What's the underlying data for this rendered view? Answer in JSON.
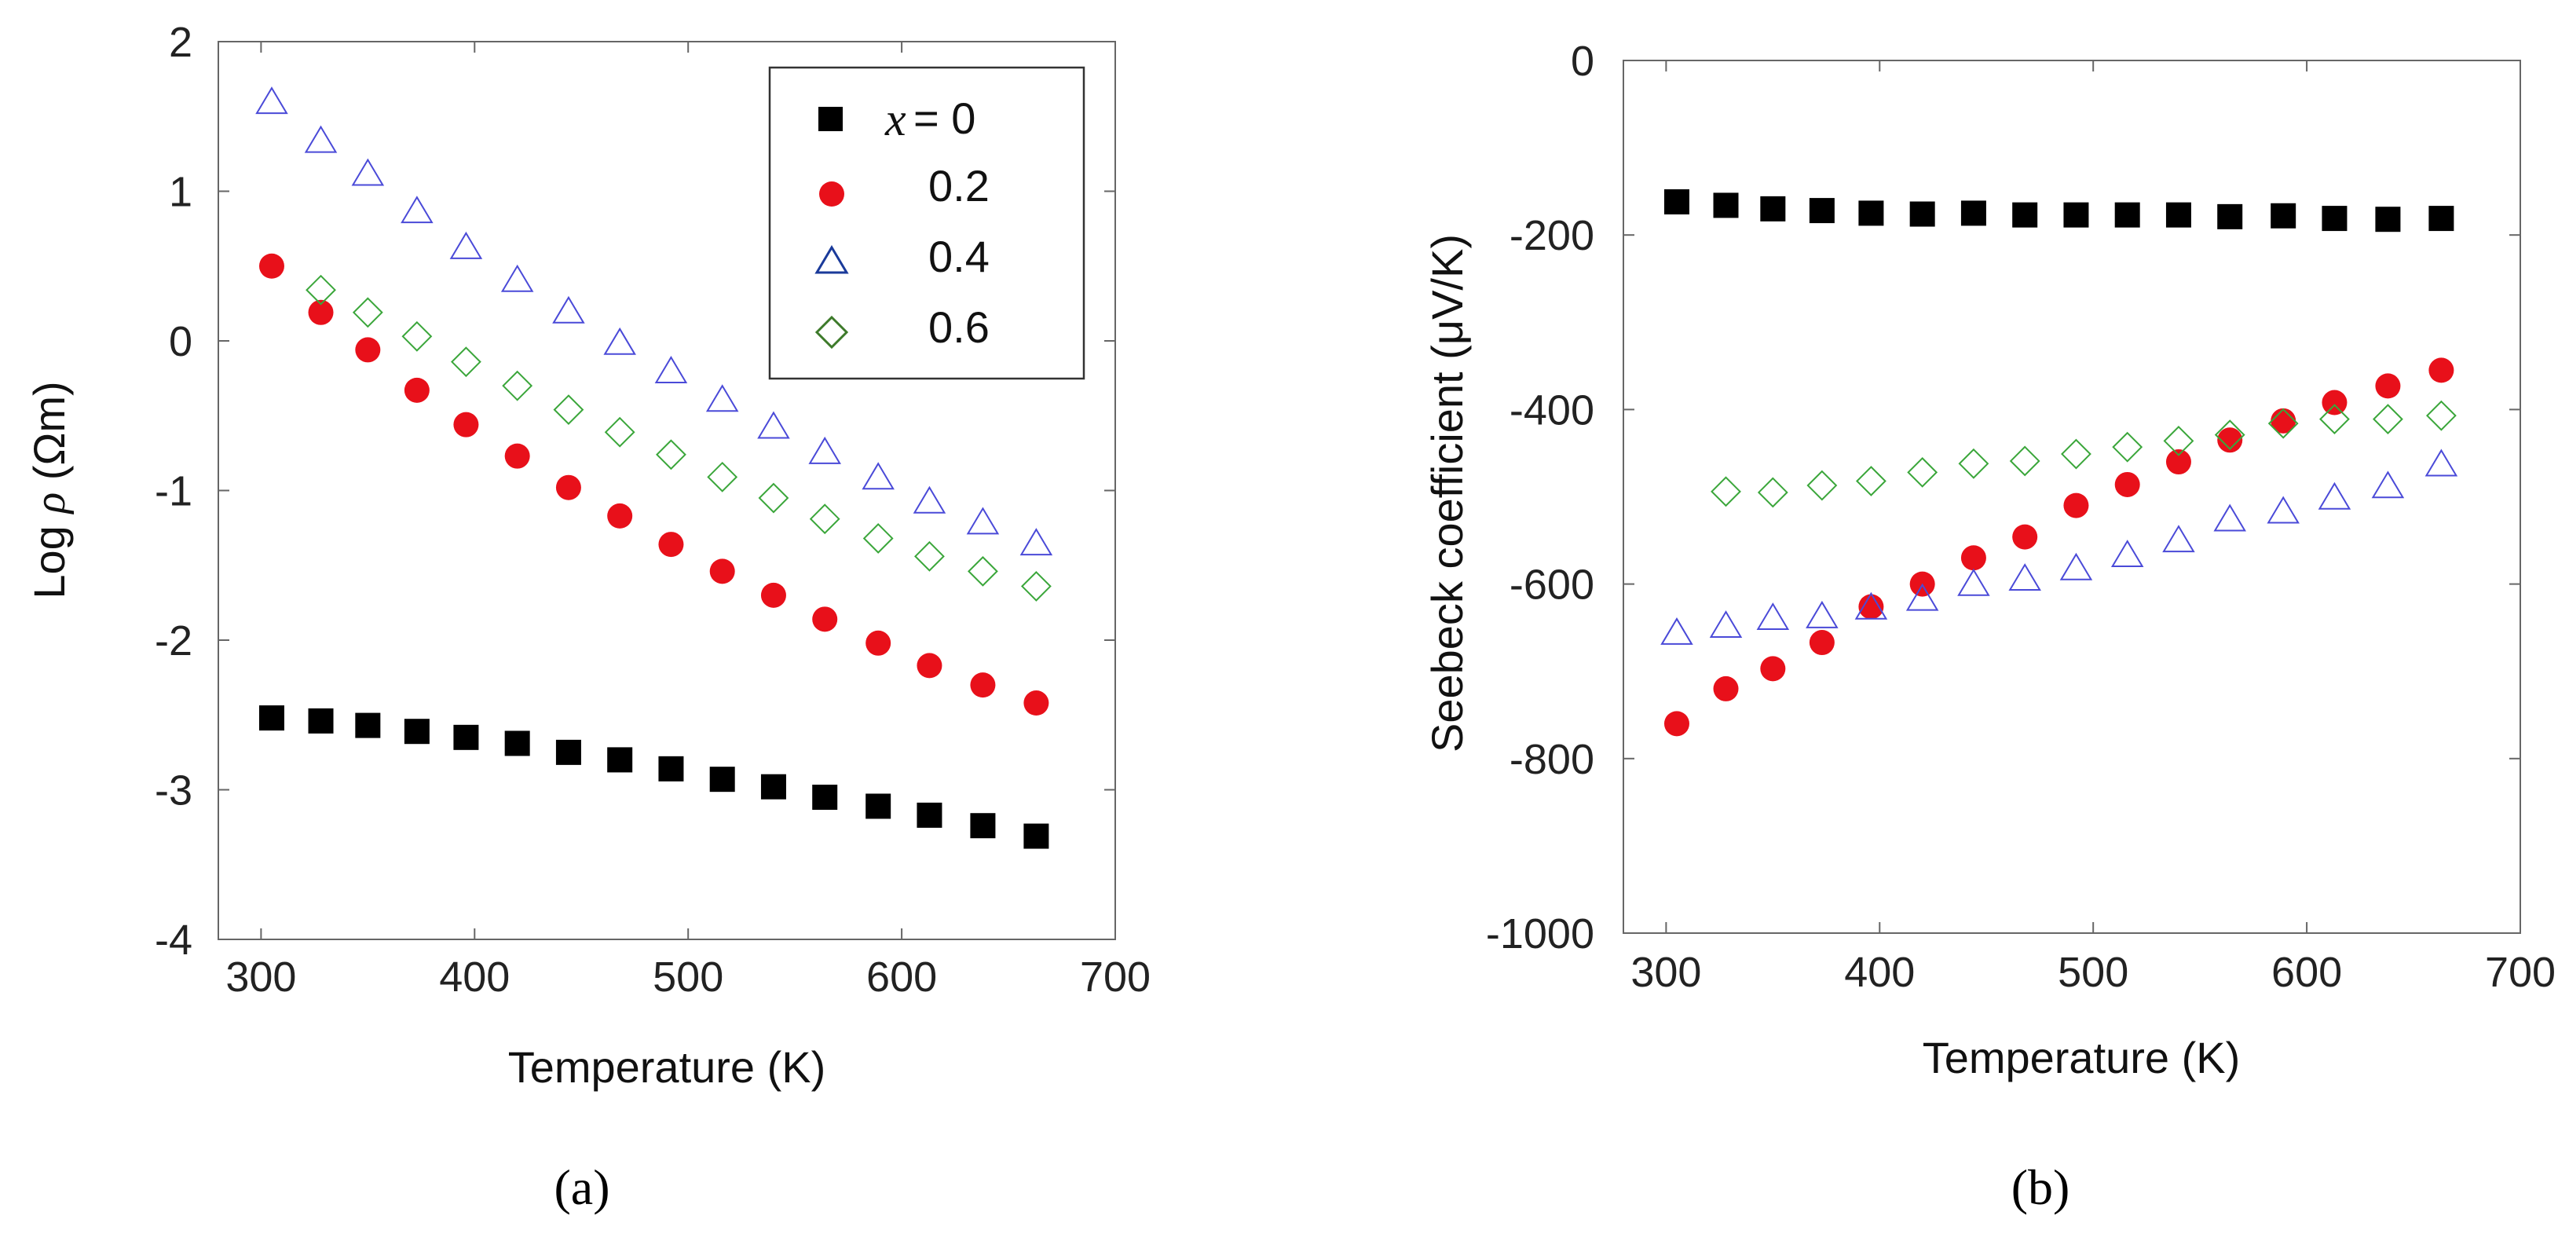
{
  "chart_data": [
    {
      "type": "scatter",
      "panel_label": "(a)",
      "xlabel": "Temperature (K)",
      "ylabel_prefix": "Log ",
      "ylabel_symbol": "ρ",
      "ylabel_suffix": " (Ωm)",
      "xlim": [
        280,
        700
      ],
      "ylim": [
        -4,
        2
      ],
      "xticks": [
        300,
        400,
        500,
        600,
        700
      ],
      "yticks": [
        -4,
        -3,
        -2,
        -1,
        0,
        1,
        2
      ],
      "legend": {
        "position": "top-right",
        "var_label": "x",
        "entries": [
          "= 0",
          "0.2",
          "0.4",
          "0.6"
        ]
      },
      "series": [
        {
          "name": "x = 0",
          "marker": "square",
          "color": "#000000",
          "x": [
            305,
            328,
            350,
            373,
            396,
            420,
            444,
            468,
            492,
            516,
            540,
            564,
            589,
            613,
            638,
            663
          ],
          "y": [
            -2.52,
            -2.54,
            -2.57,
            -2.61,
            -2.65,
            -2.69,
            -2.75,
            -2.8,
            -2.86,
            -2.93,
            -2.98,
            -3.05,
            -3.11,
            -3.17,
            -3.24,
            -3.31
          ]
        },
        {
          "name": "0.2",
          "marker": "circle",
          "color": "#e8101a",
          "x": [
            305,
            328,
            350,
            373,
            396,
            420,
            444,
            468,
            492,
            516,
            540,
            564,
            589,
            613,
            638,
            663
          ],
          "y": [
            0.5,
            0.19,
            -0.06,
            -0.33,
            -0.56,
            -0.77,
            -0.98,
            -1.17,
            -1.36,
            -1.54,
            -1.7,
            -1.86,
            -2.02,
            -2.17,
            -2.3,
            -2.42
          ]
        },
        {
          "name": "0.4",
          "marker": "triangle",
          "color": "#4a4ad8",
          "x": [
            305,
            328,
            350,
            373,
            396,
            420,
            444,
            468,
            492,
            516,
            540,
            564,
            589,
            613,
            638,
            663
          ],
          "y": [
            1.59,
            1.33,
            1.11,
            0.86,
            0.62,
            0.4,
            0.19,
            -0.02,
            -0.21,
            -0.4,
            -0.58,
            -0.75,
            -0.92,
            -1.08,
            -1.22,
            -1.36
          ]
        },
        {
          "name": "0.6",
          "marker": "diamond",
          "color": "#3aa63a",
          "x": [
            328,
            350,
            373,
            396,
            420,
            444,
            468,
            492,
            516,
            540,
            564,
            589,
            613,
            638,
            663
          ],
          "y": [
            0.34,
            0.19,
            0.03,
            -0.14,
            -0.3,
            -0.46,
            -0.61,
            -0.76,
            -0.91,
            -1.05,
            -1.19,
            -1.32,
            -1.44,
            -1.54,
            -1.64
          ]
        }
      ]
    },
    {
      "type": "scatter",
      "panel_label": "(b)",
      "xlabel": "Temperature (K)",
      "ylabel": "Seebeck coefficient (μV/K)",
      "xlim": [
        280,
        700
      ],
      "ylim": [
        -1000,
        0
      ],
      "xticks": [
        300,
        400,
        500,
        600,
        700
      ],
      "yticks": [
        -1000,
        -800,
        -600,
        -400,
        -200,
        0
      ],
      "series": [
        {
          "name": "x = 0",
          "marker": "square",
          "color": "#000000",
          "x": [
            305,
            328,
            350,
            373,
            396,
            420,
            444,
            468,
            492,
            516,
            540,
            564,
            589,
            613,
            638,
            663
          ],
          "y": [
            -162,
            -166,
            -170,
            -172,
            -175,
            -176,
            -175,
            -177,
            -177,
            -177,
            -177,
            -179,
            -178,
            -181,
            -182,
            -181
          ]
        },
        {
          "name": "0.2",
          "marker": "circle",
          "color": "#e8101a",
          "x": [
            305,
            328,
            350,
            373,
            396,
            420,
            444,
            468,
            492,
            516,
            540,
            564,
            589,
            613,
            638,
            663
          ],
          "y": [
            -760,
            -720,
            -697,
            -667,
            -626,
            -600,
            -570,
            -546,
            -510,
            -486,
            -460,
            -435,
            -413,
            -392,
            -373,
            -355
          ]
        },
        {
          "name": "0.4",
          "marker": "triangle",
          "color": "#4a4ad8",
          "x": [
            305,
            328,
            350,
            373,
            396,
            420,
            444,
            468,
            492,
            516,
            540,
            564,
            589,
            613,
            638,
            663
          ],
          "y": [
            -657,
            -649,
            -640,
            -638,
            -628,
            -618,
            -601,
            -595,
            -583,
            -568,
            -551,
            -527,
            -518,
            -502,
            -489,
            -464
          ]
        },
        {
          "name": "0.6",
          "marker": "diamond",
          "color": "#3aa63a",
          "x": [
            328,
            350,
            373,
            396,
            420,
            444,
            468,
            492,
            516,
            540,
            564,
            589,
            613,
            638,
            663
          ],
          "y": [
            -494,
            -495,
            -487,
            -482,
            -472,
            -462,
            -459,
            -451,
            -443,
            -436,
            -429,
            -416,
            -411,
            -411,
            -407
          ]
        }
      ]
    }
  ]
}
